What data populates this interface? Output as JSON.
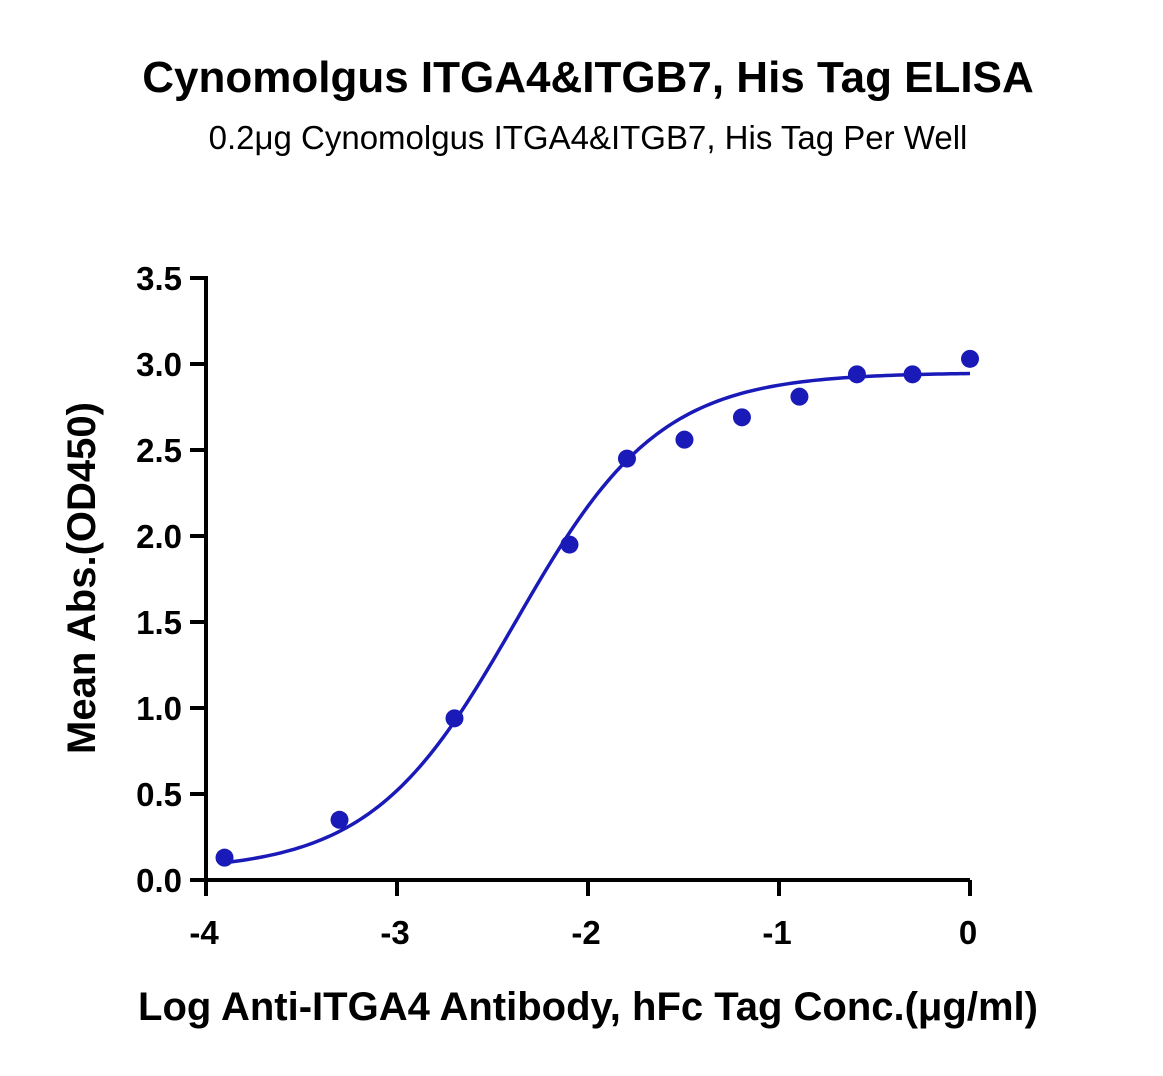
{
  "colors": {
    "series": "#1a1ab8",
    "axis": "#000000",
    "background": "#ffffff"
  },
  "chart_data": {
    "type": "scatter",
    "title": "Cynomolgus ITGA4&ITGB7, His Tag ELISA",
    "subtitle": "0.2μg Cynomolgus ITGA4&ITGB7, His Tag Per Well",
    "xlabel": "Log Anti-ITGA4 Antibody, hFc Tag Conc.(μg/ml)",
    "ylabel": "Mean Abs.(OD450)",
    "xlim": [
      -4,
      0
    ],
    "ylim": [
      0,
      3.5
    ],
    "xticks": [
      -4,
      -3,
      -2,
      -1,
      0
    ],
    "xtick_labels": [
      "-4",
      "-3",
      "-2",
      "-1",
      "0"
    ],
    "yticks": [
      0,
      0.5,
      1,
      1.5,
      2,
      2.5,
      3,
      3.5
    ],
    "ytick_labels": [
      "0.0",
      "0.5",
      "1.0",
      "1.5",
      "2.0",
      "2.5",
      "3.0",
      "3.5"
    ],
    "grid": false,
    "legend": "none",
    "series": [
      {
        "points": [
          {
            "x": -3.903,
            "y": 0.13
          },
          {
            "x": -3.301,
            "y": 0.35
          },
          {
            "x": -2.699,
            "y": 0.94
          },
          {
            "x": -2.097,
            "y": 1.95
          },
          {
            "x": -1.796,
            "y": 2.45
          },
          {
            "x": -1.495,
            "y": 2.56
          },
          {
            "x": -1.194,
            "y": 2.69
          },
          {
            "x": -0.893,
            "y": 2.81
          },
          {
            "x": -0.592,
            "y": 2.94
          },
          {
            "x": -0.301,
            "y": 2.94
          },
          {
            "x": 0.0,
            "y": 3.03
          }
        ],
        "fit": {
          "model": "4PL",
          "bottom": 0.05,
          "top": 2.95,
          "logEC50": -2.38,
          "hill": 1.15,
          "x_range": [
            -3.903,
            0.0
          ]
        }
      }
    ]
  }
}
